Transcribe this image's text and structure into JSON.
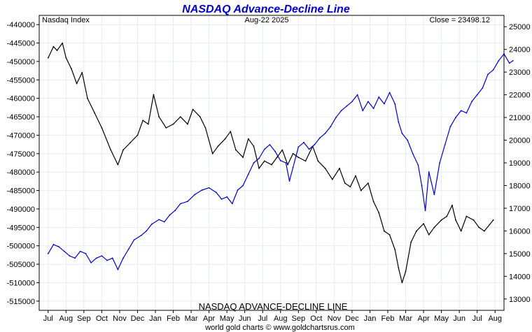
{
  "chart_data": {
    "type": "line",
    "title": "NASDAQ Advance-Decline Line",
    "top_left_label": "Nasdaq Index",
    "date_label": "Aug-22  2025",
    "close_label": "Close = 23498.12",
    "bottom_label": "NASDAQ ADVANCE-DECLINE LINE",
    "footer": "world gold charts © www.goldchartsrus.com",
    "x_ticks": [
      "Jul",
      "Aug",
      "Sep",
      "Oct",
      "Nov",
      "Dec",
      "Jan",
      "Feb",
      "Mar",
      "Apr",
      "May",
      "Jun",
      "Jul",
      "Aug",
      "Sep",
      "Oct",
      "Nov",
      "Dec",
      "Jan",
      "Feb",
      "Mar",
      "Apr",
      "May",
      "Jun",
      "Jul",
      "Aug"
    ],
    "left_axis": {
      "series": "advance_decline",
      "ylim": [
        -517500,
        -437500
      ],
      "ticks": [
        -440000,
        -445000,
        -450000,
        -455000,
        -460000,
        -465000,
        -470000,
        -475000,
        -480000,
        -485000,
        -490000,
        -495000,
        -500000,
        -505000,
        -510000,
        -515000
      ]
    },
    "right_axis": {
      "series": "nasdaq_index",
      "ylim": [
        12500,
        25500
      ],
      "ticks": [
        25000,
        24000,
        23000,
        22000,
        21000,
        20000,
        19000,
        18000,
        17000,
        16000,
        15000,
        14000,
        13000
      ]
    },
    "grid": true,
    "series": [
      {
        "id": "advance_decline",
        "color": "#000000",
        "axis": "left",
        "points": [
          [
            0,
            -449000
          ],
          [
            0.3,
            -446000
          ],
          [
            0.5,
            -447000
          ],
          [
            0.8,
            -445000
          ],
          [
            1.0,
            -449000
          ],
          [
            1.3,
            -452000
          ],
          [
            1.6,
            -456000
          ],
          [
            1.9,
            -453000
          ],
          [
            2.2,
            -460000
          ],
          [
            2.6,
            -464000
          ],
          [
            3.0,
            -468000
          ],
          [
            3.5,
            -474000
          ],
          [
            3.9,
            -478000
          ],
          [
            4.2,
            -474000
          ],
          [
            4.6,
            -472000
          ],
          [
            5.0,
            -470000
          ],
          [
            5.3,
            -466000
          ],
          [
            5.6,
            -467000
          ],
          [
            5.9,
            -459000
          ],
          [
            6.2,
            -465000
          ],
          [
            6.6,
            -468000
          ],
          [
            7.0,
            -467000
          ],
          [
            7.4,
            -465000
          ],
          [
            7.8,
            -467000
          ],
          [
            8.1,
            -463000
          ],
          [
            8.5,
            -465000
          ],
          [
            8.8,
            -468000
          ],
          [
            9.2,
            -475000
          ],
          [
            9.5,
            -473000
          ],
          [
            9.9,
            -471000
          ],
          [
            10.2,
            -469000
          ],
          [
            10.5,
            -474000
          ],
          [
            10.9,
            -476000
          ],
          [
            11.2,
            -471000
          ],
          [
            11.5,
            -473000
          ],
          [
            11.8,
            -479000
          ],
          [
            12.1,
            -477000
          ],
          [
            12.5,
            -478000
          ],
          [
            12.8,
            -476000
          ],
          [
            13.1,
            -474000
          ],
          [
            13.4,
            -478000
          ],
          [
            13.7,
            -475000
          ],
          [
            14.0,
            -476000
          ],
          [
            14.4,
            -477000
          ],
          [
            14.8,
            -473000
          ],
          [
            15.1,
            -477000
          ],
          [
            15.5,
            -479000
          ],
          [
            15.9,
            -482000
          ],
          [
            16.3,
            -479000
          ],
          [
            16.6,
            -483000
          ],
          [
            16.9,
            -484000
          ],
          [
            17.2,
            -481000
          ],
          [
            17.5,
            -485000
          ],
          [
            17.9,
            -483000
          ],
          [
            18.2,
            -488000
          ],
          [
            18.5,
            -491000
          ],
          [
            18.8,
            -496000
          ],
          [
            19.1,
            -497000
          ],
          [
            19.4,
            -501000
          ],
          [
            19.6,
            -506000
          ],
          [
            19.8,
            -510000
          ],
          [
            20.0,
            -507000
          ],
          [
            20.3,
            -499000
          ],
          [
            20.6,
            -496000
          ],
          [
            21.0,
            -494000
          ],
          [
            21.3,
            -497000
          ],
          [
            21.6,
            -495000
          ],
          [
            22.0,
            -493000
          ],
          [
            22.3,
            -492000
          ],
          [
            22.6,
            -489000
          ],
          [
            22.8,
            -493000
          ],
          [
            23.1,
            -496000
          ],
          [
            23.4,
            -492000
          ],
          [
            23.8,
            -493000
          ],
          [
            24.1,
            -495000
          ],
          [
            24.4,
            -496000
          ],
          [
            24.9,
            -493000
          ]
        ]
      },
      {
        "id": "nasdaq_index",
        "color": "#0000cc",
        "axis": "right",
        "points": [
          [
            0,
            15000
          ],
          [
            0.3,
            15400
          ],
          [
            0.6,
            15300
          ],
          [
            0.9,
            15100
          ],
          [
            1.2,
            14900
          ],
          [
            1.5,
            14800
          ],
          [
            1.8,
            15100
          ],
          [
            2.1,
            15000
          ],
          [
            2.4,
            14600
          ],
          [
            2.7,
            14800
          ],
          [
            3.0,
            14900
          ],
          [
            3.3,
            14700
          ],
          [
            3.6,
            14800
          ],
          [
            3.9,
            14300
          ],
          [
            4.2,
            14800
          ],
          [
            4.5,
            15200
          ],
          [
            4.8,
            15600
          ],
          [
            5.2,
            15800
          ],
          [
            5.5,
            16000
          ],
          [
            5.8,
            16300
          ],
          [
            6.2,
            16500
          ],
          [
            6.5,
            16400
          ],
          [
            6.8,
            16700
          ],
          [
            7.1,
            16900
          ],
          [
            7.4,
            17200
          ],
          [
            7.8,
            17300
          ],
          [
            8.2,
            17600
          ],
          [
            8.6,
            17800
          ],
          [
            9.0,
            17900
          ],
          [
            9.4,
            17700
          ],
          [
            9.7,
            17400
          ],
          [
            10.0,
            17500
          ],
          [
            10.3,
            17200
          ],
          [
            10.6,
            17800
          ],
          [
            10.9,
            18000
          ],
          [
            11.2,
            18500
          ],
          [
            11.5,
            19000
          ],
          [
            11.8,
            19200
          ],
          [
            12.1,
            19600
          ],
          [
            12.4,
            19800
          ],
          [
            12.7,
            19500
          ],
          [
            13.0,
            19100
          ],
          [
            13.3,
            19000
          ],
          [
            13.5,
            18200
          ],
          [
            13.7,
            18800
          ],
          [
            14.0,
            19700
          ],
          [
            14.3,
            19900
          ],
          [
            14.6,
            19600
          ],
          [
            14.9,
            19800
          ],
          [
            15.2,
            20100
          ],
          [
            15.5,
            20300
          ],
          [
            15.8,
            20600
          ],
          [
            16.1,
            21000
          ],
          [
            16.4,
            21300
          ],
          [
            16.7,
            21500
          ],
          [
            17.0,
            21700
          ],
          [
            17.3,
            22000
          ],
          [
            17.6,
            21300
          ],
          [
            17.9,
            21700
          ],
          [
            18.2,
            21400
          ],
          [
            18.5,
            21900
          ],
          [
            18.8,
            21600
          ],
          [
            19.1,
            22100
          ],
          [
            19.4,
            21600
          ],
          [
            19.6,
            20800
          ],
          [
            19.8,
            20300
          ],
          [
            20.1,
            20000
          ],
          [
            20.4,
            19400
          ],
          [
            20.7,
            18900
          ],
          [
            20.9,
            18000
          ],
          [
            21.1,
            16900
          ],
          [
            21.3,
            18600
          ],
          [
            21.6,
            17600
          ],
          [
            21.9,
            19000
          ],
          [
            22.2,
            19800
          ],
          [
            22.5,
            20600
          ],
          [
            22.8,
            21000
          ],
          [
            23.1,
            21300
          ],
          [
            23.4,
            21200
          ],
          [
            23.7,
            21700
          ],
          [
            24.0,
            22000
          ],
          [
            24.3,
            22300
          ],
          [
            24.6,
            22900
          ],
          [
            24.9,
            23100
          ],
          [
            25.2,
            23500
          ],
          [
            25.5,
            23800
          ],
          [
            25.8,
            23400
          ],
          [
            26.0,
            23500
          ]
        ]
      }
    ]
  }
}
